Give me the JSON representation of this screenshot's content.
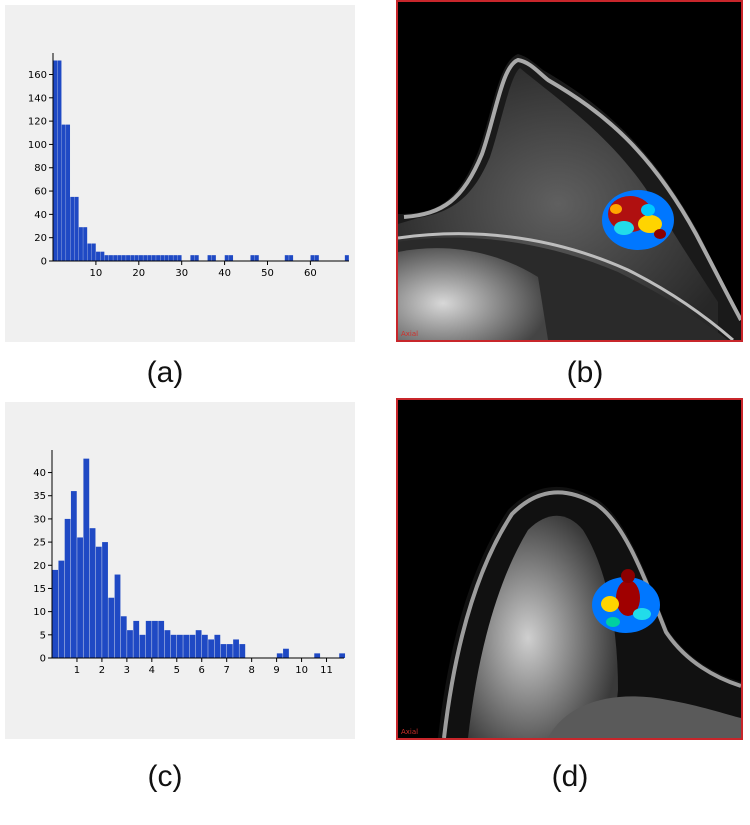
{
  "chart_data": [
    {
      "type": "bar",
      "panel": "(a)",
      "x_ticks": [
        10,
        20,
        30,
        40,
        50,
        60
      ],
      "y_ticks": [
        0,
        20,
        40,
        60,
        80,
        100,
        120,
        140,
        160
      ],
      "xlim": [
        0,
        69
      ],
      "ylim": [
        0,
        175
      ],
      "x": [
        0.5,
        1.5,
        2.5,
        3.5,
        4.5,
        5.5,
        6.5,
        7.5,
        8.5,
        9.5,
        10.5,
        11.5,
        12.5,
        13.5,
        14.5,
        15.5,
        16.5,
        17.5,
        18.5,
        19.5,
        20.5,
        21.5,
        22.5,
        23.5,
        24.5,
        25.5,
        26.5,
        27.5,
        28.5,
        29.5,
        30.5,
        31.5,
        32.5,
        33.5,
        34.5,
        35.5,
        36.5,
        37.5,
        38.5,
        39.5,
        40.5,
        41.5,
        42.5,
        43.5,
        44.5,
        45.5,
        46.5,
        47.5,
        48.5,
        49.5,
        50.5,
        51.5,
        52.5,
        53.5,
        54.5,
        55.5,
        56.5,
        57.5,
        58.5,
        59.5,
        60.5,
        61.5,
        62.5,
        63.5,
        64.5,
        65.5,
        66.5,
        67.5,
        68.5
      ],
      "values": [
        172,
        172,
        117,
        117,
        55,
        55,
        29,
        29,
        15,
        15,
        8,
        8,
        5,
        5,
        5,
        5,
        5,
        5,
        5,
        5,
        5,
        5,
        5,
        5,
        5,
        5,
        5,
        5,
        5,
        5,
        0,
        0,
        5,
        5,
        0,
        0,
        5,
        5,
        0,
        0,
        5,
        5,
        0,
        0,
        0,
        0,
        5,
        5,
        0,
        0,
        0,
        0,
        0,
        0,
        5,
        5,
        0,
        0,
        0,
        0,
        5,
        5,
        0,
        0,
        0,
        0,
        0,
        0,
        5
      ]
    },
    {
      "type": "bar",
      "panel": "(c)",
      "x_ticks": [
        1,
        2,
        3,
        4,
        5,
        6,
        7,
        8,
        9,
        10,
        11
      ],
      "y_ticks": [
        0,
        5,
        10,
        15,
        20,
        25,
        30,
        35,
        40
      ],
      "xlim": [
        0,
        11.7
      ],
      "ylim": [
        0,
        44
      ],
      "x": [
        0.125,
        0.375,
        0.625,
        0.875,
        1.125,
        1.375,
        1.625,
        1.875,
        2.125,
        2.375,
        2.625,
        2.875,
        3.125,
        3.375,
        3.625,
        3.875,
        4.125,
        4.375,
        4.625,
        4.875,
        5.125,
        5.375,
        5.625,
        5.875,
        6.125,
        6.375,
        6.625,
        6.875,
        7.125,
        7.375,
        7.625,
        7.875,
        8.125,
        8.375,
        8.625,
        8.875,
        9.125,
        9.375,
        9.625,
        9.875,
        10.125,
        10.375,
        10.625,
        10.875,
        11.125,
        11.375,
        11.625
      ],
      "values": [
        19,
        21,
        30,
        36,
        26,
        43,
        28,
        24,
        25,
        13,
        18,
        9,
        6,
        8,
        5,
        8,
        8,
        8,
        6,
        5,
        5,
        5,
        5,
        6,
        5,
        4,
        5,
        3,
        3,
        4,
        3,
        0,
        0,
        0,
        0,
        0,
        1,
        2,
        0,
        0,
        0,
        0,
        1,
        0,
        0,
        0,
        1
      ]
    }
  ],
  "colors": {
    "bar": "#1f49c4",
    "panel_background": "#f0f0f0",
    "axis": "#000000",
    "mri_border": "#c8262b",
    "mri_label": "#d0302b"
  },
  "captions": {
    "a": "(a)",
    "b": "(b)",
    "c": "(c)",
    "d": "(d)"
  },
  "mri_labels": {
    "b": "Axial",
    "d": "Axial"
  }
}
